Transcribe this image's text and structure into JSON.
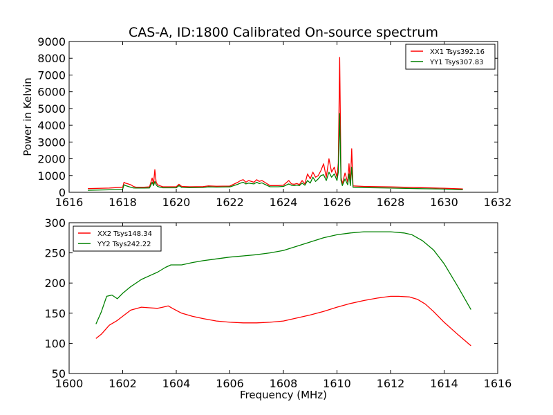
{
  "page_title": "CAS-A, ID:1800 Calibrated On-source spectrum",
  "chart_data": [
    {
      "type": "line",
      "title": "CAS-A, ID:1800 Calibrated On-source spectrum",
      "xlabel": "",
      "ylabel": "Power in Kelvin",
      "xlim": [
        1616,
        1632
      ],
      "ylim": [
        0,
        9000
      ],
      "xticks": [
        "1616",
        "1618",
        "1620",
        "1622",
        "1624",
        "1626",
        "1628",
        "1630",
        "1632"
      ],
      "yticks": [
        "0",
        "1000",
        "2000",
        "3000",
        "4000",
        "5000",
        "6000",
        "7000",
        "8000",
        "9000"
      ],
      "grid": false,
      "legend_position": "top-right",
      "colors": {
        "XX1 Tsys392.16": "#ff0000",
        "YY1 Tsys307.83": "#008000"
      },
      "series": [
        {
          "name": "XX1 Tsys392.16",
          "color": "#ff0000",
          "x": [
            1616.7,
            1617.5,
            1618.0,
            1618.05,
            1618.1,
            1618.2,
            1618.3,
            1618.4,
            1618.5,
            1618.8,
            1619.0,
            1619.1,
            1619.15,
            1619.2,
            1619.25,
            1619.3,
            1619.4,
            1619.5,
            1619.8,
            1620.0,
            1620.1,
            1620.2,
            1620.5,
            1621.0,
            1621.2,
            1621.5,
            1622.0,
            1622.3,
            1622.4,
            1622.5,
            1622.6,
            1622.7,
            1622.8,
            1622.9,
            1623.0,
            1623.1,
            1623.2,
            1623.3,
            1623.5,
            1623.8,
            1624.0,
            1624.2,
            1624.3,
            1624.4,
            1624.5,
            1624.6,
            1624.7,
            1624.8,
            1624.9,
            1625.0,
            1625.1,
            1625.2,
            1625.3,
            1625.4,
            1625.5,
            1625.6,
            1625.7,
            1625.8,
            1625.9,
            1626.0,
            1626.05,
            1626.1,
            1626.15,
            1626.2,
            1626.3,
            1626.4,
            1626.45,
            1626.5,
            1626.55,
            1626.6,
            1627.0,
            1628.0,
            1629.0,
            1630.0,
            1630.7
          ],
          "y": [
            220,
            250,
            300,
            600,
            550,
            500,
            450,
            350,
            300,
            300,
            320,
            850,
            500,
            1350,
            600,
            450,
            380,
            330,
            330,
            330,
            480,
            350,
            330,
            340,
            380,
            360,
            370,
            600,
            700,
            750,
            600,
            700,
            650,
            600,
            750,
            650,
            700,
            600,
            400,
            400,
            420,
            700,
            500,
            480,
            520,
            460,
            700,
            500,
            1100,
            800,
            1200,
            900,
            1000,
            1300,
            1700,
            900,
            2000,
            1200,
            1500,
            900,
            1750,
            8050,
            900,
            500,
            1150,
            600,
            1700,
            500,
            2600,
            380,
            350,
            320,
            280,
            240,
            200
          ]
        },
        {
          "name": "YY1 Tsys307.83",
          "color": "#008000",
          "x": [
            1616.7,
            1617.5,
            1618.0,
            1618.05,
            1618.1,
            1618.2,
            1618.3,
            1618.4,
            1618.5,
            1618.8,
            1619.0,
            1619.1,
            1619.15,
            1619.2,
            1619.25,
            1619.3,
            1619.4,
            1619.5,
            1619.8,
            1620.0,
            1620.1,
            1620.2,
            1620.5,
            1621.0,
            1621.2,
            1621.5,
            1622.0,
            1622.3,
            1622.4,
            1622.5,
            1622.6,
            1622.7,
            1622.8,
            1622.9,
            1623.0,
            1623.1,
            1623.2,
            1623.3,
            1623.5,
            1623.8,
            1624.0,
            1624.2,
            1624.3,
            1624.4,
            1624.5,
            1624.6,
            1624.7,
            1624.8,
            1624.9,
            1625.0,
            1625.1,
            1625.2,
            1625.3,
            1625.4,
            1625.5,
            1625.6,
            1625.7,
            1625.8,
            1625.9,
            1626.0,
            1626.05,
            1626.1,
            1626.15,
            1626.2,
            1626.3,
            1626.4,
            1626.45,
            1626.5,
            1626.55,
            1626.6,
            1627.0,
            1628.0,
            1629.0,
            1630.0,
            1630.7
          ],
          "y": [
            120,
            150,
            180,
            450,
            400,
            350,
            300,
            260,
            250,
            250,
            260,
            600,
            400,
            650,
            450,
            350,
            300,
            270,
            270,
            270,
            400,
            290,
            280,
            290,
            320,
            310,
            320,
            480,
            550,
            600,
            500,
            550,
            520,
            500,
            600,
            520,
            560,
            480,
            330,
            330,
            350,
            500,
            420,
            400,
            430,
            400,
            550,
            420,
            700,
            550,
            900,
            650,
            800,
            1000,
            1050,
            700,
            1200,
            900,
            1100,
            700,
            1200,
            4700,
            700,
            400,
            800,
            450,
            1100,
            400,
            1500,
            300,
            280,
            250,
            220,
            190,
            150
          ]
        }
      ]
    },
    {
      "type": "line",
      "title": "",
      "xlabel": "Frequency (MHz)",
      "ylabel": "",
      "xlim": [
        1600,
        1616
      ],
      "ylim": [
        50,
        300
      ],
      "xticks": [
        "1600",
        "1602",
        "1604",
        "1606",
        "1608",
        "1610",
        "1612",
        "1614",
        "1616"
      ],
      "yticks": [
        "50",
        "100",
        "150",
        "200",
        "250",
        "300"
      ],
      "grid": false,
      "legend_position": "top-left",
      "colors": {
        "XX2 Tsys148.34": "#ff0000",
        "YY2 Tsys242.22": "#008000"
      },
      "series": [
        {
          "name": "XX2 Tsys148.34",
          "color": "#ff0000",
          "x": [
            1601.0,
            1601.2,
            1601.5,
            1601.8,
            1602.0,
            1602.3,
            1602.7,
            1603.0,
            1603.3,
            1603.5,
            1603.7,
            1603.9,
            1604.2,
            1604.6,
            1605.0,
            1605.5,
            1606.0,
            1606.5,
            1607.0,
            1607.5,
            1608.0,
            1608.5,
            1609.0,
            1609.5,
            1610.0,
            1610.5,
            1611.0,
            1611.5,
            1612.0,
            1612.3,
            1612.7,
            1613.0,
            1613.3,
            1613.6,
            1614.0,
            1614.5,
            1615.0
          ],
          "y": [
            108,
            115,
            130,
            138,
            145,
            155,
            160,
            159,
            158,
            160,
            162,
            157,
            150,
            145,
            141,
            137,
            135,
            134,
            134,
            135,
            137,
            142,
            147,
            153,
            160,
            166,
            171,
            175,
            178,
            178,
            177,
            173,
            165,
            153,
            135,
            115,
            96
          ]
        },
        {
          "name": "YY2 Tsys242.22",
          "color": "#008000",
          "x": [
            1601.0,
            1601.2,
            1601.4,
            1601.6,
            1601.8,
            1602.0,
            1602.3,
            1602.7,
            1603.0,
            1603.3,
            1603.6,
            1603.8,
            1604.2,
            1604.6,
            1605.0,
            1605.5,
            1606.0,
            1606.5,
            1607.0,
            1607.5,
            1608.0,
            1608.5,
            1609.0,
            1609.5,
            1610.0,
            1610.5,
            1611.0,
            1611.5,
            1612.0,
            1612.5,
            1612.8,
            1613.2,
            1613.6,
            1614.0,
            1614.5,
            1615.0
          ],
          "y": [
            132,
            152,
            178,
            180,
            174,
            183,
            194,
            206,
            212,
            218,
            226,
            230,
            230,
            234,
            237,
            240,
            243,
            245,
            247,
            250,
            254,
            261,
            268,
            275,
            280,
            283,
            285,
            285,
            285,
            283,
            280,
            270,
            255,
            232,
            195,
            156
          ]
        }
      ]
    }
  ]
}
